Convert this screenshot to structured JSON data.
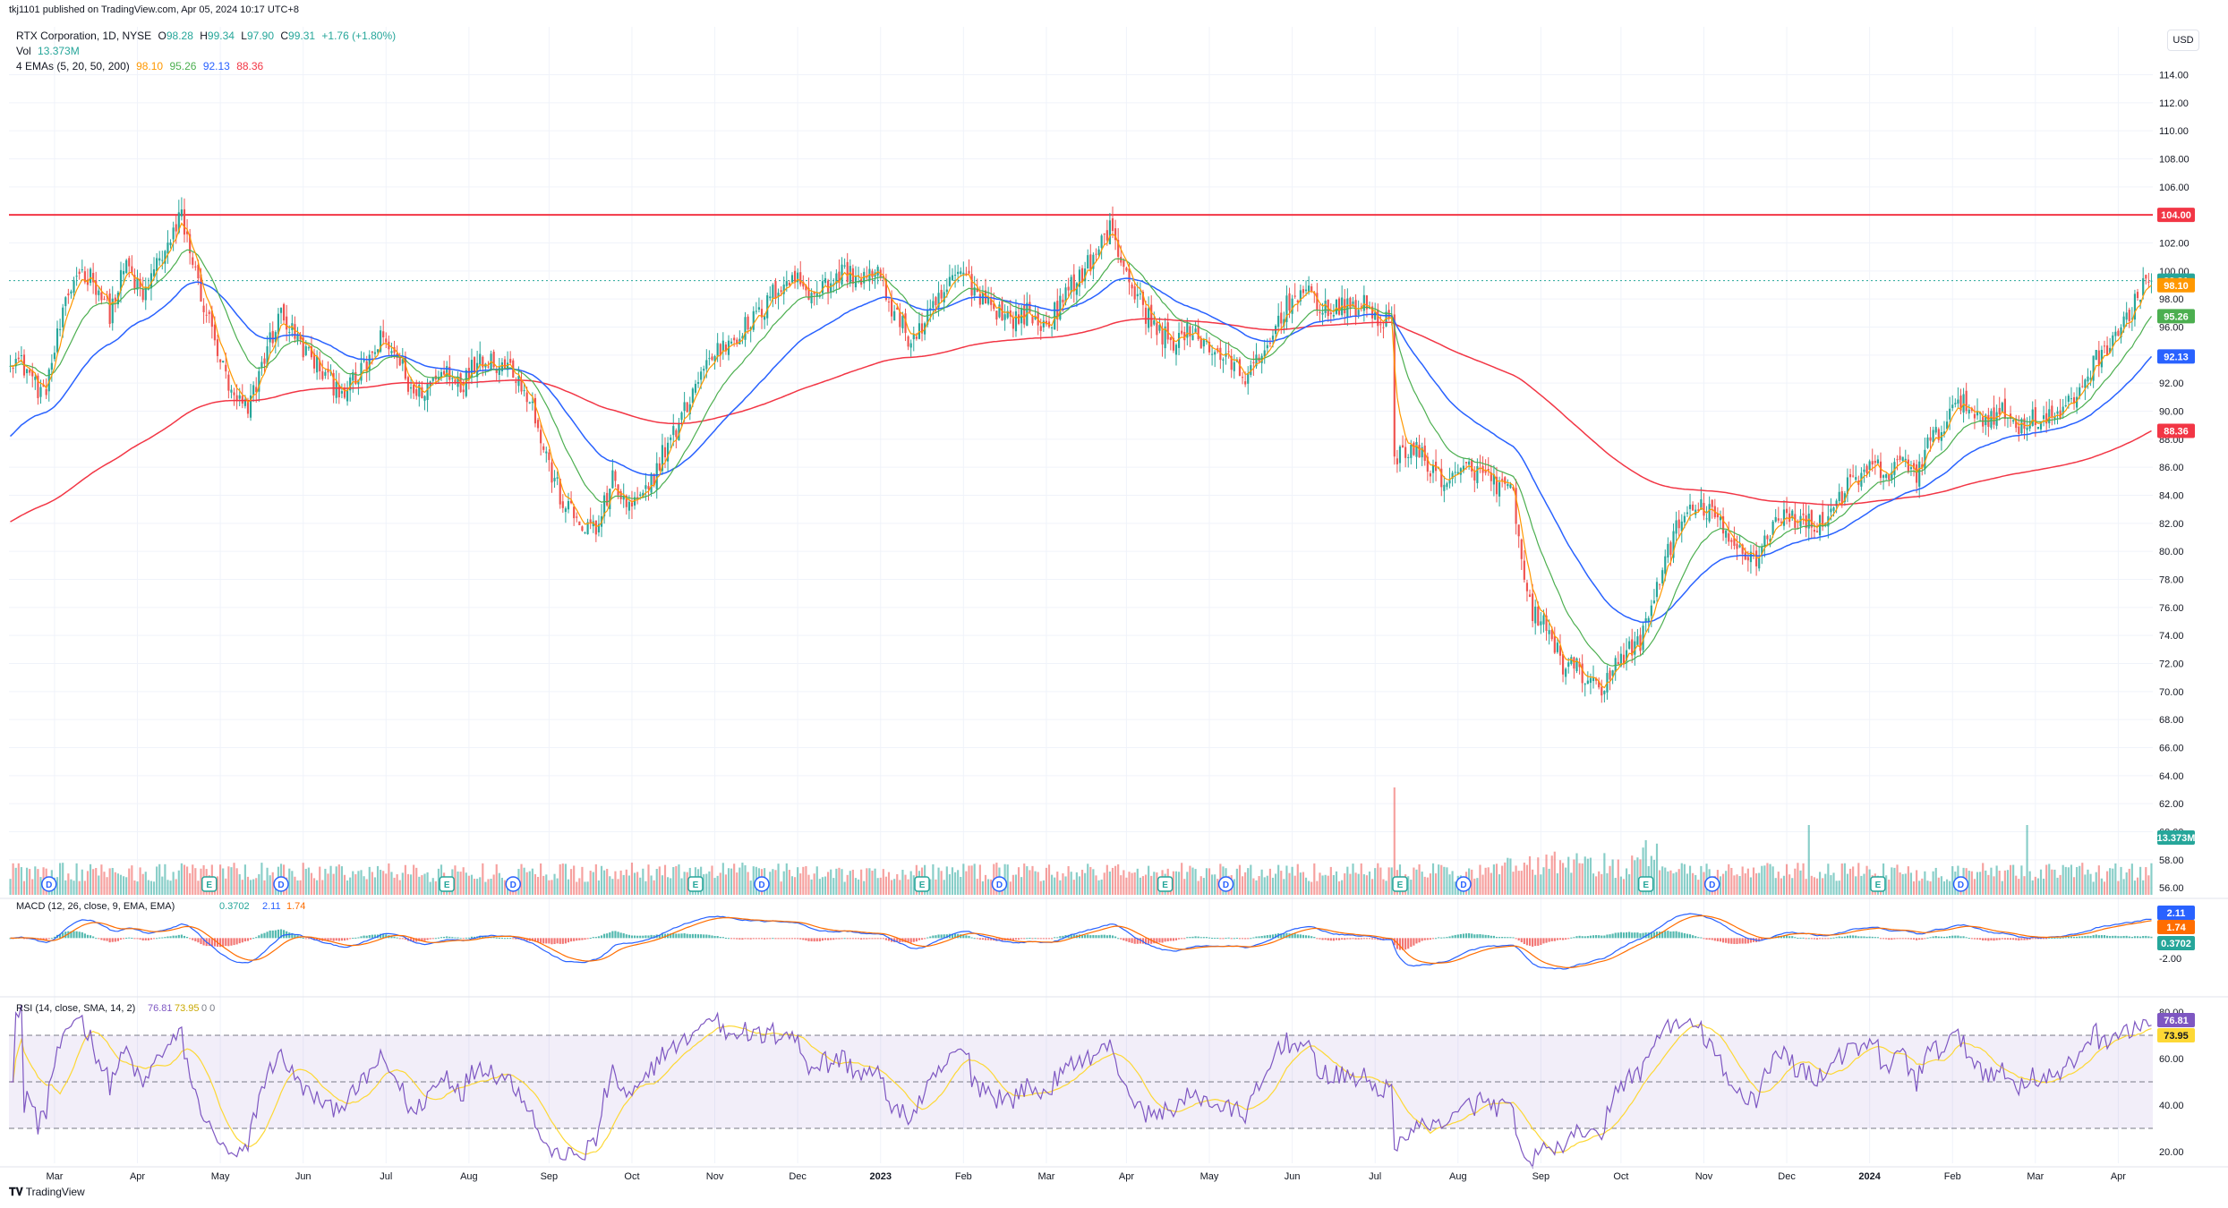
{
  "header": {
    "published": "tkj1101 published on TradingView.com, Apr 05, 2024 10:17 UTC+8",
    "symbol": "RTX Corporation, 1D, NYSE",
    "o_label": "O",
    "o": "98.28",
    "h_label": "H",
    "h": "99.34",
    "l_label": "L",
    "l": "97.90",
    "c_label": "C",
    "c": "99.31",
    "change": "+1.76 (+1.80%)",
    "vol_label": "Vol",
    "vol_value": "13.373M",
    "ema_label": "4 EMAs (5, 20, 50, 200)",
    "ema_values": [
      "98.10",
      "95.26",
      "92.13",
      "88.36"
    ],
    "currency": "USD"
  },
  "colors": {
    "up": "#26a69a",
    "down": "#ef5350",
    "ema5": "#ff9800",
    "ema20": "#4caf50",
    "ema50": "#2962ff",
    "ema200": "#f23645",
    "resistance": "#f23645",
    "macd": "#2962ff",
    "signal": "#ff6d00",
    "rsi": "#7e57c2",
    "rsi_ma": "#fdd835",
    "grid": "#f0f3fa",
    "axis_text": "#131722"
  },
  "chart_data": {
    "type": "candlestick",
    "price_axis": {
      "ticks": [
        "114.00",
        "112.00",
        "110.00",
        "108.00",
        "106.00",
        "104.00",
        "102.00",
        "100.00",
        "98.00",
        "96.00",
        "94.00",
        "92.00",
        "90.00",
        "88.00",
        "86.00",
        "84.00",
        "82.00",
        "80.00",
        "78.00",
        "76.00",
        "74.00",
        "72.00",
        "70.00",
        "68.00",
        "66.00",
        "64.00",
        "62.00",
        "60.00",
        "58.00",
        "56.00"
      ],
      "range": [
        55.5,
        115.5
      ]
    },
    "time_axis": [
      "Mar",
      "Apr",
      "May",
      "Jun",
      "Jul",
      "Aug",
      "Sep",
      "Oct",
      "Nov",
      "Dec",
      "2023",
      "Feb",
      "Mar",
      "Apr",
      "May",
      "Jun",
      "Jul",
      "Aug",
      "Sep",
      "Oct",
      "Nov",
      "Dec",
      "2024",
      "Feb",
      "Mar",
      "Apr"
    ],
    "price_anchors": [
      [
        0,
        94
      ],
      [
        6,
        93
      ],
      [
        12,
        91
      ],
      [
        18,
        96
      ],
      [
        24,
        100
      ],
      [
        30,
        99.5
      ],
      [
        36,
        97
      ],
      [
        42,
        100.5
      ],
      [
        48,
        98
      ],
      [
        54,
        101
      ],
      [
        58,
        102
      ],
      [
        62,
        104
      ],
      [
        68,
        99
      ],
      [
        74,
        95
      ],
      [
        80,
        91
      ],
      [
        86,
        90
      ],
      [
        92,
        94
      ],
      [
        98,
        97
      ],
      [
        104,
        95
      ],
      [
        110,
        93.5
      ],
      [
        116,
        92
      ],
      [
        122,
        91.5
      ],
      [
        128,
        93
      ],
      [
        134,
        95
      ],
      [
        140,
        94
      ],
      [
        146,
        91
      ],
      [
        152,
        92
      ],
      [
        158,
        93
      ],
      [
        164,
        92
      ],
      [
        170,
        94
      ],
      [
        176,
        93.5
      ],
      [
        182,
        93
      ],
      [
        188,
        91
      ],
      [
        192,
        88
      ],
      [
        196,
        85.5
      ],
      [
        200,
        83.5
      ],
      [
        206,
        82
      ],
      [
        212,
        81.5
      ],
      [
        218,
        85
      ],
      [
        224,
        83
      ],
      [
        230,
        84
      ],
      [
        236,
        87
      ],
      [
        242,
        89
      ],
      [
        248,
        92
      ],
      [
        254,
        94
      ],
      [
        260,
        95
      ],
      [
        266,
        96
      ],
      [
        272,
        97
      ],
      [
        278,
        99
      ],
      [
        284,
        99.5
      ],
      [
        290,
        98.5
      ],
      [
        296,
        99
      ],
      [
        302,
        100
      ],
      [
        308,
        99.5
      ],
      [
        314,
        99.8
      ],
      [
        320,
        97
      ],
      [
        326,
        95
      ],
      [
        332,
        96.5
      ],
      [
        338,
        98.5
      ],
      [
        344,
        100
      ],
      [
        350,
        98.5
      ],
      [
        356,
        97.5
      ],
      [
        362,
        96.5
      ],
      [
        368,
        97
      ],
      [
        374,
        96
      ],
      [
        380,
        97.5
      ],
      [
        386,
        99.5
      ],
      [
        392,
        101
      ],
      [
        398,
        103
      ],
      [
        402,
        101
      ],
      [
        408,
        98
      ],
      [
        414,
        96
      ],
      [
        420,
        95
      ],
      [
        426,
        95.5
      ],
      [
        432,
        95
      ],
      [
        438,
        94
      ],
      [
        444,
        93
      ],
      [
        448,
        92.5
      ],
      [
        454,
        94
      ],
      [
        460,
        97
      ],
      [
        466,
        98.5
      ],
      [
        472,
        98
      ],
      [
        478,
        97
      ],
      [
        484,
        97.5
      ],
      [
        490,
        97.5
      ],
      [
        496,
        96.5
      ],
      [
        500,
        96.5
      ],
      [
        501,
        86
      ],
      [
        504,
        87.5
      ],
      [
        510,
        87
      ],
      [
        516,
        85.5
      ],
      [
        522,
        85
      ],
      [
        528,
        86
      ],
      [
        534,
        85.5
      ],
      [
        540,
        84.5
      ],
      [
        544,
        84
      ],
      [
        547,
        79
      ],
      [
        550,
        76
      ],
      [
        556,
        74.5
      ],
      [
        562,
        72
      ],
      [
        568,
        71.5
      ],
      [
        574,
        70
      ],
      [
        576,
        69.5
      ],
      [
        580,
        72
      ],
      [
        586,
        73
      ],
      [
        590,
        73.5
      ],
      [
        594,
        76
      ],
      [
        598,
        79
      ],
      [
        604,
        82
      ],
      [
        610,
        83
      ],
      [
        616,
        83
      ],
      [
        622,
        80.5
      ],
      [
        628,
        80
      ],
      [
        632,
        79.5
      ],
      [
        638,
        82
      ],
      [
        644,
        82.5
      ],
      [
        650,
        82
      ],
      [
        656,
        82
      ],
      [
        662,
        84
      ],
      [
        668,
        85
      ],
      [
        674,
        86
      ],
      [
        680,
        85.5
      ],
      [
        686,
        86.5
      ],
      [
        690,
        85.5
      ],
      [
        694,
        87.5
      ],
      [
        698,
        88.5
      ],
      [
        702,
        90
      ],
      [
        708,
        90.5
      ],
      [
        714,
        89.5
      ],
      [
        720,
        90
      ],
      [
        726,
        89
      ],
      [
        732,
        89.5
      ],
      [
        738,
        89.5
      ],
      [
        744,
        90
      ],
      [
        750,
        92
      ],
      [
        756,
        94
      ],
      [
        762,
        95.5
      ],
      [
        768,
        97
      ],
      [
        772,
        99.31
      ]
    ],
    "resistance_level": 104.0,
    "resistance_label": "104.00",
    "last_price_label": "99.31",
    "ema_labels": [
      "98.10",
      "95.26",
      "92.13",
      "88.36"
    ],
    "volume_label": "13.373M",
    "event_markers": [
      {
        "bar": 14,
        "type": "D"
      },
      {
        "bar": 72,
        "type": "E"
      },
      {
        "bar": 98,
        "type": "D"
      },
      {
        "bar": 158,
        "type": "E"
      },
      {
        "bar": 182,
        "type": "D"
      },
      {
        "bar": 248,
        "type": "E"
      },
      {
        "bar": 272,
        "type": "D"
      },
      {
        "bar": 330,
        "type": "E"
      },
      {
        "bar": 358,
        "type": "D"
      },
      {
        "bar": 418,
        "type": "E"
      },
      {
        "bar": 440,
        "type": "D"
      },
      {
        "bar": 503,
        "type": "E"
      },
      {
        "bar": 526,
        "type": "D"
      },
      {
        "bar": 592,
        "type": "E"
      },
      {
        "bar": 616,
        "type": "D"
      },
      {
        "bar": 676,
        "type": "E"
      },
      {
        "bar": 706,
        "type": "D"
      }
    ],
    "macd": {
      "label": "MACD (12, 26, close, 9, EMA, EMA)",
      "values": [
        "0.3702",
        "2.11",
        "1.74"
      ],
      "axis_ticks": [
        "2.00",
        "-2.00"
      ],
      "range": [
        -5.5,
        3.6
      ],
      "axis_label_values": [
        "2.11",
        "1.74",
        "0.3702"
      ]
    },
    "rsi": {
      "label": "RSI (14, close, SMA, 14, 2)",
      "values": [
        "76.81",
        "73.95"
      ],
      "extra": "0 0",
      "axis_ticks": [
        "80.00",
        "60.00",
        "40.00",
        "20.00"
      ],
      "bands": [
        70,
        50,
        30
      ],
      "range": [
        15,
        85
      ]
    }
  },
  "footer": {
    "brand": "TradingView"
  }
}
